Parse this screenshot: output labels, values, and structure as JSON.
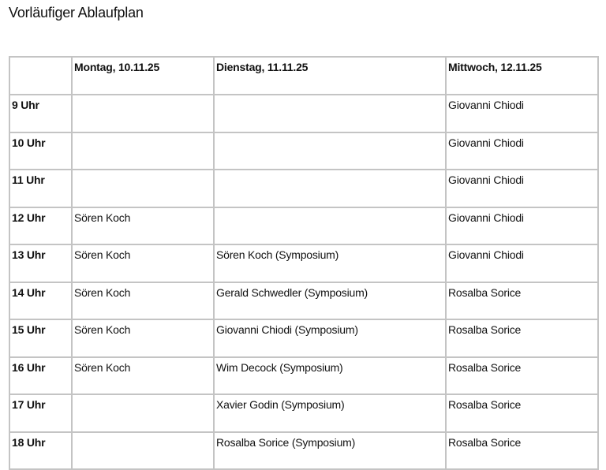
{
  "title": "Vorläufiger Ablaufplan",
  "columns": [
    "",
    "Montag, 10.11.25",
    "Dienstag, 11.11.25",
    "Mittwoch, 12.11.25"
  ],
  "rows": [
    [
      "9 Uhr",
      "",
      "",
      "Giovanni Chiodi"
    ],
    [
      "10 Uhr",
      "",
      "",
      "Giovanni Chiodi"
    ],
    [
      "11 Uhr",
      "",
      "",
      "Giovanni Chiodi"
    ],
    [
      "12 Uhr",
      "Sören Koch",
      "",
      "Giovanni Chiodi"
    ],
    [
      "13 Uhr",
      "Sören Koch",
      "Sören Koch (Symposium)",
      "Giovanni Chiodi"
    ],
    [
      "14 Uhr",
      "Sören Koch",
      "Gerald Schwedler (Symposium)",
      "Rosalba Sorice"
    ],
    [
      "15 Uhr",
      "Sören Koch",
      "Giovanni Chiodi (Symposium)",
      "Rosalba Sorice"
    ],
    [
      "16 Uhr",
      "Sören Koch",
      "Wim Decock (Symposium)",
      "Rosalba Sorice"
    ],
    [
      "17 Uhr",
      "",
      "Xavier Godin (Symposium)",
      "Rosalba Sorice"
    ],
    [
      "18 Uhr",
      "",
      "Rosalba Sorice (Symposium)",
      "Rosalba Sorice"
    ]
  ]
}
